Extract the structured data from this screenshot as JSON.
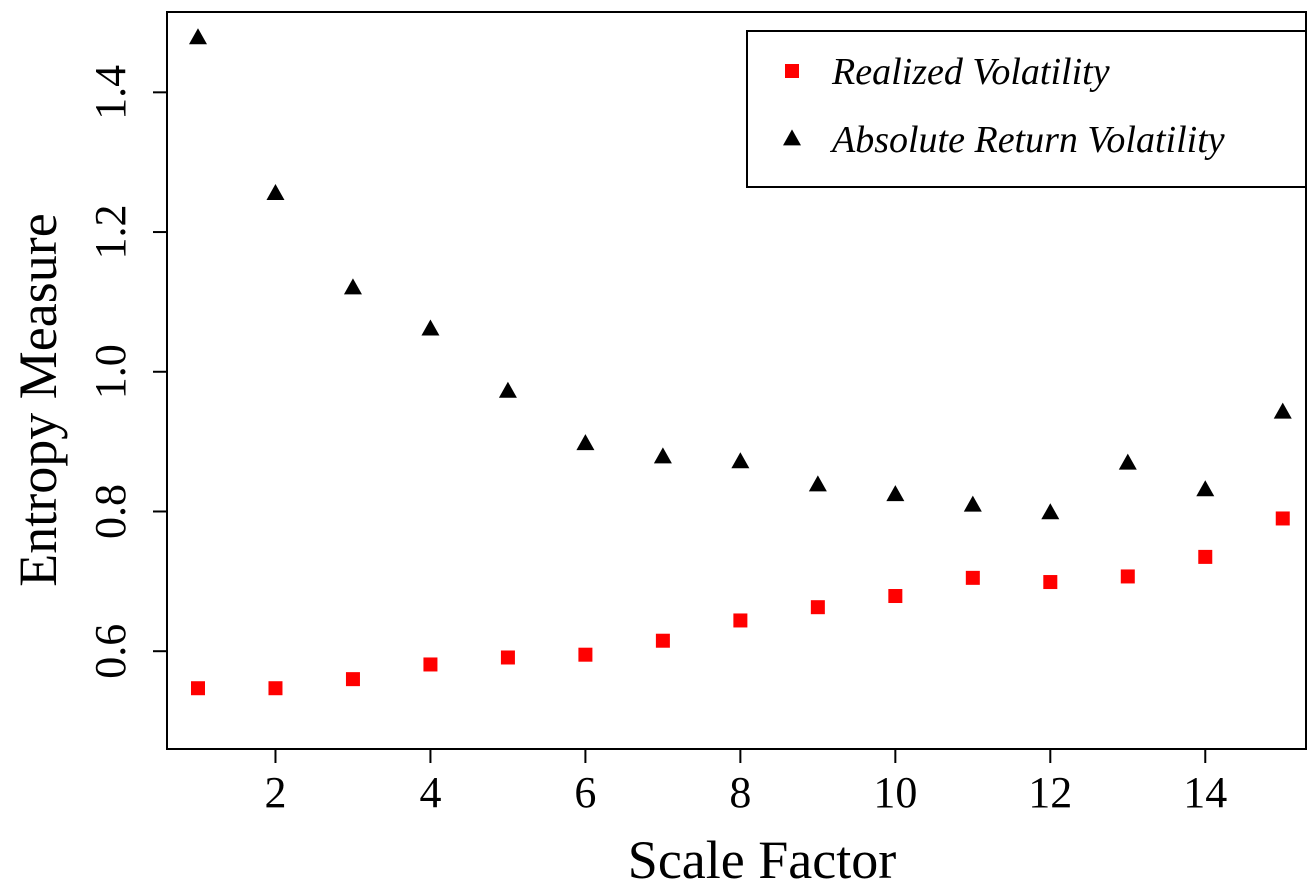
{
  "chart_data": {
    "type": "scatter",
    "title": "",
    "xlabel": "Scale Factor",
    "ylabel": "Entropy Measure",
    "xlim": [
      0.6,
      15.3
    ],
    "ylim": [
      0.46,
      1.515
    ],
    "x_ticks": [
      2,
      4,
      6,
      8,
      10,
      12,
      14
    ],
    "y_ticks": [
      0.6,
      0.8,
      1.0,
      1.2,
      1.4
    ],
    "x_tick_labels": [
      "2",
      "4",
      "6",
      "8",
      "10",
      "12",
      "14"
    ],
    "y_tick_labels": [
      "0.6",
      "0.8",
      "1.0",
      "1.2",
      "1.4"
    ],
    "grid": false,
    "legend_position": "top-right",
    "x": [
      1,
      2,
      3,
      4,
      5,
      6,
      7,
      8,
      9,
      10,
      11,
      12,
      13,
      14,
      15
    ],
    "series": [
      {
        "name": "Realized Volatility",
        "marker": "square",
        "color": "#ff0000",
        "values": [
          0.547,
          0.547,
          0.56,
          0.581,
          0.591,
          0.595,
          0.615,
          0.644,
          0.663,
          0.679,
          0.705,
          0.699,
          0.707,
          0.735,
          0.79
        ]
      },
      {
        "name": "Absolute Return Volatility",
        "marker": "triangle",
        "color": "#000000",
        "values": [
          1.478,
          1.255,
          1.12,
          1.061,
          0.972,
          0.897,
          0.878,
          0.871,
          0.838,
          0.824,
          0.809,
          0.798,
          0.869,
          0.831,
          0.942
        ]
      }
    ]
  }
}
